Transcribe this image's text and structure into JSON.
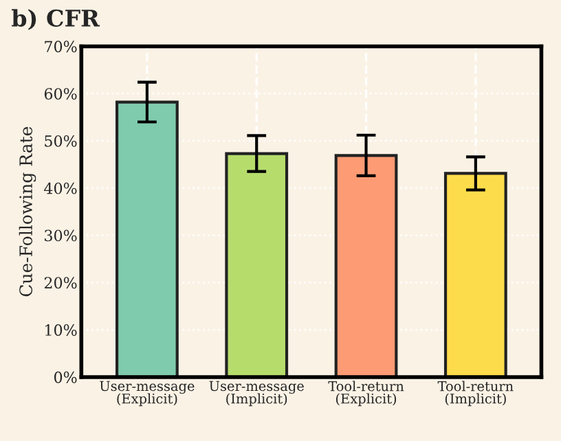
{
  "chart_data": {
    "type": "bar",
    "title": "b) CFR",
    "ylabel": "Cue-Following Rate",
    "categories": [
      "User-message\n(Explicit)",
      "User-message\n(Implicit)",
      "Tool-return\n(Explicit)",
      "Tool-return\n(Implicit)"
    ],
    "values": [
      58.2,
      47.3,
      46.9,
      43.1
    ],
    "errors": [
      4.2,
      3.8,
      4.3,
      3.5
    ],
    "colors": [
      "#7fcbad",
      "#b6dd6c",
      "#fd9b74",
      "#fddc4c"
    ],
    "ylim": [
      0,
      70
    ],
    "yticks": [
      {
        "value": 0,
        "label": "0%"
      },
      {
        "value": 10,
        "label": "10%"
      },
      {
        "value": 20,
        "label": "20%"
      },
      {
        "value": 30,
        "label": "30%"
      },
      {
        "value": 40,
        "label": "40%"
      },
      {
        "value": 50,
        "label": "50%"
      },
      {
        "value": 60,
        "label": "60%"
      },
      {
        "value": 70,
        "label": "70%"
      }
    ],
    "grid": true
  }
}
